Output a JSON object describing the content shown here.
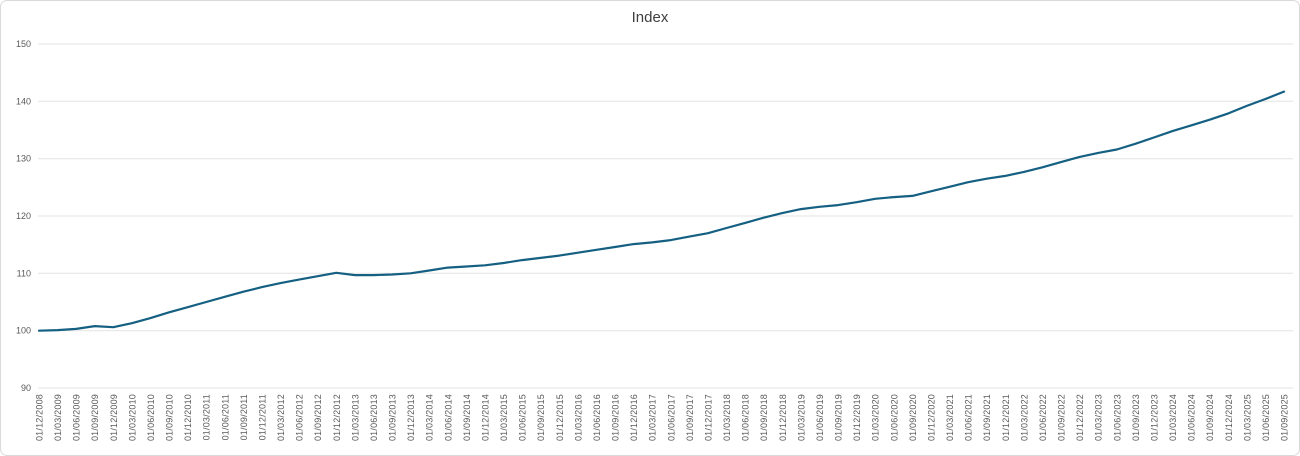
{
  "chart": {
    "title": "Index"
  },
  "chart_data": {
    "type": "line",
    "title": "Index",
    "xlabel": "",
    "ylabel": "",
    "legend": "none",
    "grid": "horizontal",
    "ylim": [
      90,
      150
    ],
    "yticks": [
      90,
      100,
      110,
      120,
      130,
      140,
      150
    ],
    "line_color": "#156082",
    "gridline_color": "#e3e3e3",
    "tick_label_color": "#595959",
    "title_color": "#3f3f3f",
    "categories": [
      "01/12/2008",
      "01/03/2009",
      "01/06/2009",
      "01/09/2009",
      "01/12/2009",
      "01/03/2010",
      "01/06/2010",
      "01/09/2010",
      "01/12/2010",
      "01/03/2011",
      "01/06/2011",
      "01/09/2011",
      "01/12/2011",
      "01/03/2012",
      "01/06/2012",
      "01/09/2012",
      "01/12/2012",
      "01/03/2013",
      "01/06/2013",
      "01/09/2013",
      "01/12/2013",
      "01/03/2014",
      "01/06/2014",
      "01/09/2014",
      "01/12/2014",
      "01/03/2015",
      "01/06/2015",
      "01/09/2015",
      "01/12/2015",
      "01/03/2016",
      "01/06/2016",
      "01/09/2016",
      "01/12/2016",
      "01/03/2017",
      "01/06/2017",
      "01/09/2017",
      "01/12/2017",
      "01/03/2018",
      "01/06/2018",
      "01/09/2018",
      "01/12/2018",
      "01/03/2019",
      "01/06/2019",
      "01/09/2019",
      "01/12/2019",
      "01/03/2020",
      "01/06/2020",
      "01/09/2020",
      "01/12/2020",
      "01/03/2021",
      "01/06/2021",
      "01/09/2021",
      "01/12/2021",
      "01/03/2022",
      "01/06/2022",
      "01/09/2022",
      "01/12/2022",
      "01/03/2023",
      "01/06/2023",
      "01/09/2023",
      "01/12/2023",
      "01/03/2024",
      "01/06/2024",
      "01/09/2024",
      "01/12/2024",
      "01/03/2025",
      "01/06/2025",
      "01/09/2025"
    ],
    "values": [
      100.0,
      100.1,
      100.3,
      100.8,
      100.6,
      101.3,
      102.2,
      103.2,
      104.1,
      105.0,
      105.9,
      106.8,
      107.6,
      108.3,
      108.9,
      109.5,
      110.1,
      109.7,
      109.7,
      109.8,
      110.0,
      110.5,
      111.0,
      111.2,
      111.4,
      111.8,
      112.3,
      112.7,
      113.1,
      113.6,
      114.1,
      114.6,
      115.1,
      115.4,
      115.8,
      116.4,
      117.0,
      117.9,
      118.8,
      119.7,
      120.5,
      121.2,
      121.6,
      121.9,
      122.4,
      123.0,
      123.3,
      123.5,
      124.3,
      125.1,
      125.9,
      126.5,
      127.0,
      127.7,
      128.5,
      129.4,
      130.3,
      131.0,
      131.6,
      132.6,
      133.7,
      134.8,
      135.8,
      136.8,
      137.9,
      139.2,
      140.4,
      141.7
    ]
  }
}
